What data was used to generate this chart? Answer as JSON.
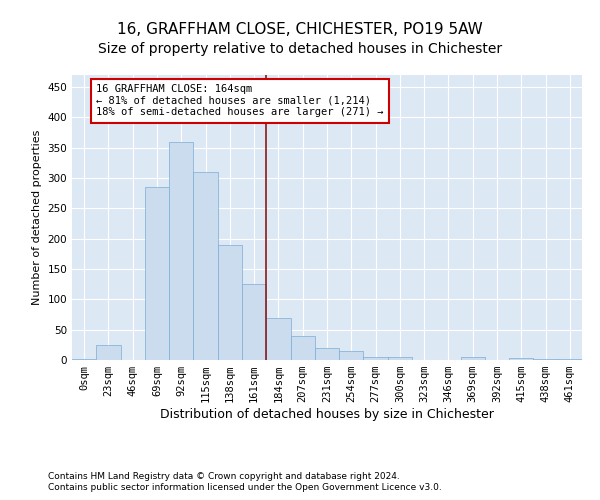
{
  "title": "16, GRAFFHAM CLOSE, CHICHESTER, PO19 5AW",
  "subtitle": "Size of property relative to detached houses in Chichester",
  "xlabel": "Distribution of detached houses by size in Chichester",
  "ylabel": "Number of detached properties",
  "bin_labels": [
    "0sqm",
    "23sqm",
    "46sqm",
    "69sqm",
    "92sqm",
    "115sqm",
    "138sqm",
    "161sqm",
    "184sqm",
    "207sqm",
    "231sqm",
    "254sqm",
    "277sqm",
    "300sqm",
    "323sqm",
    "346sqm",
    "369sqm",
    "392sqm",
    "415sqm",
    "438sqm",
    "461sqm"
  ],
  "bar_values": [
    2,
    25,
    0,
    285,
    360,
    310,
    190,
    125,
    70,
    40,
    20,
    15,
    5,
    5,
    0,
    0,
    5,
    0,
    3,
    2,
    2
  ],
  "bar_color": "#ccdcef",
  "bar_edgecolor": "#7aadd4",
  "vline_color": "#8b1a1a",
  "annotation_text": "16 GRAFFHAM CLOSE: 164sqm\n← 81% of detached houses are smaller (1,214)\n18% of semi-detached houses are larger (271) →",
  "annotation_box_facecolor": "#ffffff",
  "annotation_box_edgecolor": "#cc0000",
  "ylim": [
    0,
    470
  ],
  "yticks": [
    0,
    50,
    100,
    150,
    200,
    250,
    300,
    350,
    400,
    450
  ],
  "background_color": "#dde8f5",
  "grid_color": "#ffffff",
  "footer_line1": "Contains HM Land Registry data © Crown copyright and database right 2024.",
  "footer_line2": "Contains public sector information licensed under the Open Government Licence v3.0.",
  "title_fontsize": 11,
  "subtitle_fontsize": 10,
  "xlabel_fontsize": 9,
  "ylabel_fontsize": 8,
  "tick_fontsize": 7.5,
  "annot_fontsize": 7.5,
  "footer_fontsize": 6.5
}
